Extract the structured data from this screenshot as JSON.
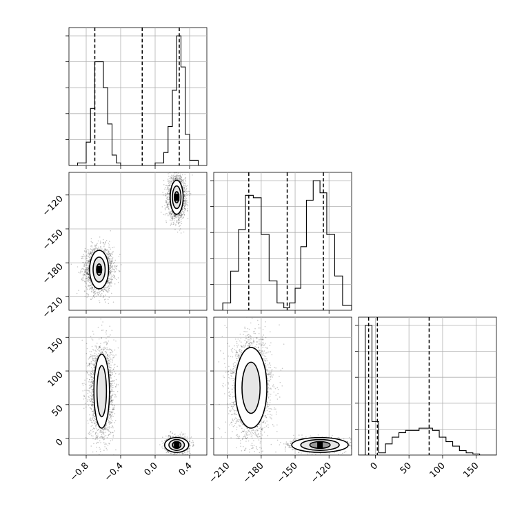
{
  "chart_data": {
    "type": "corner",
    "parameters": [
      {
        "ticks": [
          -0.8,
          -0.4,
          0.0,
          0.4
        ],
        "tick_labels": [
          "−0.8",
          "−0.4",
          "0.0",
          "0.4"
        ],
        "range": [
          -1.0,
          0.6
        ],
        "quantiles": [
          -0.7,
          -0.15,
          0.28
        ],
        "hist": {
          "bins": [
            -1.0,
            -0.9,
            -0.8,
            -0.75,
            -0.7,
            -0.6,
            -0.55,
            -0.5,
            -0.45,
            -0.4,
            -0.3,
            0.0,
            0.1,
            0.15,
            0.2,
            0.25,
            0.3,
            0.35,
            0.4,
            0.5,
            0.6
          ],
          "counts": [
            0.0,
            0.01,
            0.09,
            0.22,
            0.4,
            0.3,
            0.16,
            0.04,
            0.01,
            0.0,
            0.0,
            0.01,
            0.05,
            0.15,
            0.29,
            0.5,
            0.38,
            0.12,
            0.02,
            0.0
          ]
        },
        "modes": [
          {
            "mean": -0.65,
            "sd": 0.07
          },
          {
            "mean": 0.24,
            "sd": 0.05
          }
        ]
      },
      {
        "ticks": [
          -210,
          -180,
          -150,
          -120
        ],
        "tick_labels": [
          "−210",
          "−180",
          "−150",
          "−120"
        ],
        "range": [
          -222,
          -100
        ],
        "quantiles": [
          -191,
          -157,
          -125
        ],
        "hist": {
          "bins": [
            -222,
            -214,
            -207,
            -200,
            -194,
            -187,
            -180,
            -173,
            -166,
            -160,
            -155,
            -150,
            -145,
            -140,
            -134,
            -128,
            -122,
            -115,
            -108,
            -100
          ],
          "counts": [
            0.0,
            0.03,
            0.16,
            0.33,
            0.47,
            0.46,
            0.31,
            0.12,
            0.03,
            0.01,
            0.03,
            0.09,
            0.26,
            0.45,
            0.53,
            0.48,
            0.31,
            0.14,
            0.02
          ]
        },
        "modes": [
          {
            "mean": -191,
            "sd": 8
          },
          {
            "mean": -125,
            "sd": 7
          }
        ]
      },
      {
        "ticks": [
          0,
          50,
          100,
          150
        ],
        "tick_labels": [
          "0",
          "50",
          "100",
          "150"
        ],
        "range": [
          -25,
          180
        ],
        "quantiles": [
          -10,
          3,
          80
        ],
        "hist": {
          "bins": [
            -25,
            -15,
            -5,
            5,
            15,
            25,
            35,
            45,
            55,
            65,
            75,
            85,
            95,
            105,
            115,
            125,
            135,
            145,
            155,
            165,
            180
          ],
          "counts": [
            0.0,
            0.58,
            0.15,
            0.01,
            0.05,
            0.08,
            0.1,
            0.11,
            0.11,
            0.12,
            0.12,
            0.11,
            0.08,
            0.06,
            0.04,
            0.02,
            0.01,
            0.005,
            0.0,
            0.0
          ]
        },
        "modes": [
          {
            "mean": -12,
            "sd": 8
          },
          {
            "mean": 70,
            "sd": 32
          }
        ]
      }
    ],
    "pairs": [
      {
        "x_param": 0,
        "y_param": 1,
        "clusters": [
          {
            "x": -0.65,
            "y": -186,
            "sx": 0.08,
            "sy": 10,
            "n": 2000,
            "levels": [
              {
                "rx": 0.11,
                "ry": 17
              },
              {
                "rx": 0.07,
                "ry": 11
              },
              {
                "rx": 0.03,
                "ry": 5
              }
            ]
          },
          {
            "x": 0.25,
            "y": -122,
            "sx": 0.05,
            "sy": 9,
            "n": 2000,
            "levels": [
              {
                "rx": 0.075,
                "ry": 15
              },
              {
                "rx": 0.05,
                "ry": 10
              },
              {
                "rx": 0.025,
                "ry": 5
              }
            ]
          }
        ]
      },
      {
        "x_param": 0,
        "y_param": 2,
        "clusters": [
          {
            "x": -0.62,
            "y": 70,
            "sx": 0.07,
            "sy": 35,
            "n": 2200,
            "levels": [
              {
                "rx": 0.09,
                "ry": 55
              },
              {
                "rx": 0.055,
                "ry": 38
              }
            ]
          },
          {
            "x": 0.25,
            "y": -10,
            "sx": 0.06,
            "sy": 6,
            "n": 1200,
            "levels": [
              {
                "rx": 0.14,
                "ry": 11
              },
              {
                "rx": 0.09,
                "ry": 8
              },
              {
                "rx": 0.05,
                "ry": 5
              }
            ]
          }
        ]
      },
      {
        "x_param": 1,
        "y_param": 2,
        "clusters": [
          {
            "x": -189,
            "y": 75,
            "sx": 9,
            "sy": 38,
            "n": 2200,
            "levels": [
              {
                "rx": 14,
                "ry": 60
              },
              {
                "rx": 8,
                "ry": 38
              }
            ]
          },
          {
            "x": -128,
            "y": -10,
            "sx": 12,
            "sy": 5,
            "n": 1200,
            "levels": [
              {
                "rx": 25,
                "ry": 11
              },
              {
                "rx": 17,
                "ry": 8
              },
              {
                "rx": 9,
                "ry": 5
              }
            ]
          }
        ]
      }
    ]
  }
}
